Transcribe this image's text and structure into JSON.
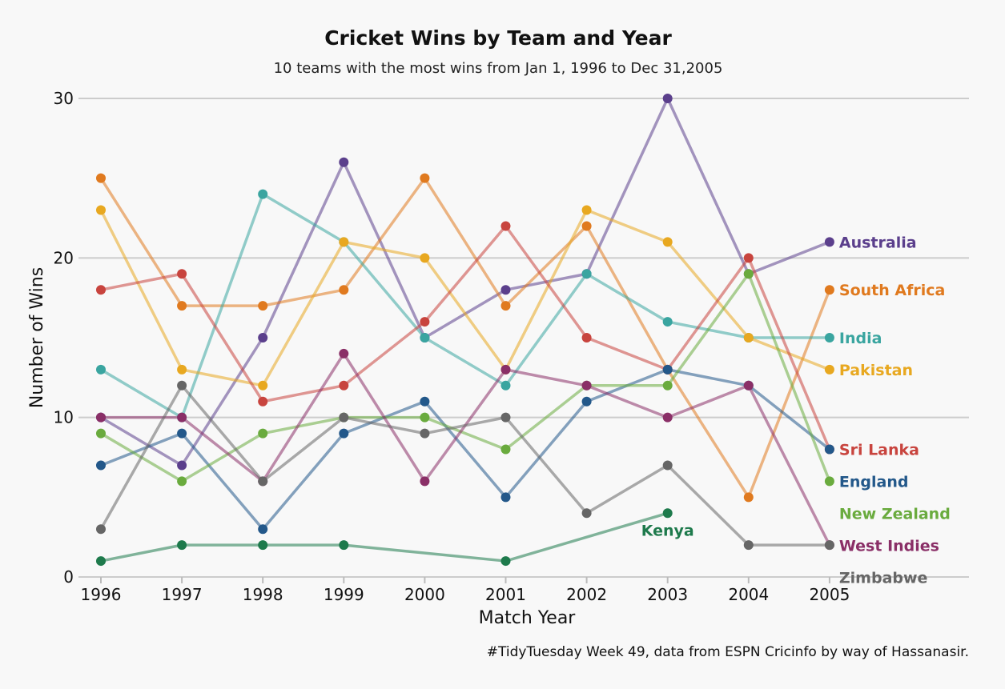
{
  "chart_data": {
    "type": "line",
    "title": "Cricket Wins by Team and Year",
    "subtitle": "10 teams with the most wins from Jan 1, 1996 to Dec 31,2005",
    "xlabel": "Match Year",
    "ylabel": "Number of Wins",
    "caption": "#TidyTuesday Week 49, data from ESPN Cricinfo by way of Hassanasir.",
    "x": [
      1996,
      1997,
      1998,
      1999,
      2000,
      2001,
      2002,
      2003,
      2004,
      2005
    ],
    "x_tick_labels": [
      "1996",
      "1997",
      "1998",
      "1999",
      "2000",
      "2001",
      "2002",
      "2003",
      "2004",
      "2005"
    ],
    "ylim": [
      0,
      30
    ],
    "y_ticks": [
      0,
      10,
      20,
      30
    ],
    "y_tick_labels": [
      "0",
      "10",
      "20",
      "30"
    ],
    "grid": "horizontal",
    "legend": "direct labels at line ends",
    "series": [
      {
        "name": "Australia",
        "color": "#5b3f8c",
        "x": [
          1996,
          1997,
          1998,
          1999,
          2000,
          2001,
          2002,
          2003,
          2004,
          2005
        ],
        "values": [
          10,
          7,
          15,
          26,
          15,
          18,
          19,
          30,
          19,
          21
        ]
      },
      {
        "name": "South Africa",
        "color": "#e07a1f",
        "x": [
          1996,
          1997,
          1998,
          1999,
          2000,
          2001,
          2002,
          2003,
          2004,
          2005
        ],
        "values": [
          25,
          17,
          17,
          18,
          25,
          17,
          22,
          13,
          5,
          18
        ]
      },
      {
        "name": "India",
        "color": "#3aa5a0",
        "x": [
          1996,
          1997,
          1998,
          1999,
          2000,
          2001,
          2002,
          2003,
          2004,
          2005
        ],
        "values": [
          13,
          10,
          24,
          21,
          15,
          12,
          19,
          16,
          15,
          15
        ]
      },
      {
        "name": "Pakistan",
        "color": "#e8a820",
        "x": [
          1996,
          1997,
          1998,
          1999,
          2000,
          2001,
          2002,
          2003,
          2004,
          2005
        ],
        "values": [
          23,
          13,
          12,
          21,
          20,
          13,
          23,
          21,
          15,
          13
        ]
      },
      {
        "name": "Sri Lanka",
        "color": "#c8443e",
        "x": [
          1996,
          1997,
          1998,
          1999,
          2000,
          2001,
          2002,
          2003,
          2004,
          2005
        ],
        "values": [
          18,
          19,
          11,
          12,
          16,
          22,
          15,
          13,
          20,
          8
        ]
      },
      {
        "name": "England",
        "color": "#23588a",
        "x": [
          1996,
          1997,
          1998,
          1999,
          2000,
          2001,
          2002,
          2003,
          2004,
          2005
        ],
        "values": [
          7,
          9,
          3,
          9,
          11,
          5,
          11,
          13,
          12,
          8
        ]
      },
      {
        "name": "New Zealand",
        "color": "#6aab3e",
        "x": [
          1996,
          1997,
          1998,
          1999,
          2000,
          2001,
          2002,
          2003,
          2004,
          2005
        ],
        "values": [
          9,
          6,
          9,
          10,
          10,
          8,
          12,
          12,
          19,
          6
        ]
      },
      {
        "name": "West Indies",
        "color": "#8a2f67",
        "x": [
          1996,
          1997,
          1998,
          1999,
          2000,
          2001,
          2002,
          2003,
          2004,
          2005
        ],
        "values": [
          10,
          10,
          6,
          14,
          6,
          13,
          12,
          10,
          12,
          2
        ]
      },
      {
        "name": "Zimbabwe",
        "color": "#666666",
        "x": [
          1996,
          1997,
          1998,
          1999,
          2000,
          2001,
          2002,
          2003,
          2004,
          2005
        ],
        "values": [
          3,
          12,
          6,
          10,
          9,
          10,
          4,
          7,
          2,
          2
        ]
      },
      {
        "name": "Kenya",
        "color": "#1e7a4c",
        "x": [
          1996,
          1997,
          1998,
          1999,
          2001,
          2003
        ],
        "values": [
          1,
          2,
          2,
          2,
          1,
          4
        ]
      }
    ]
  }
}
